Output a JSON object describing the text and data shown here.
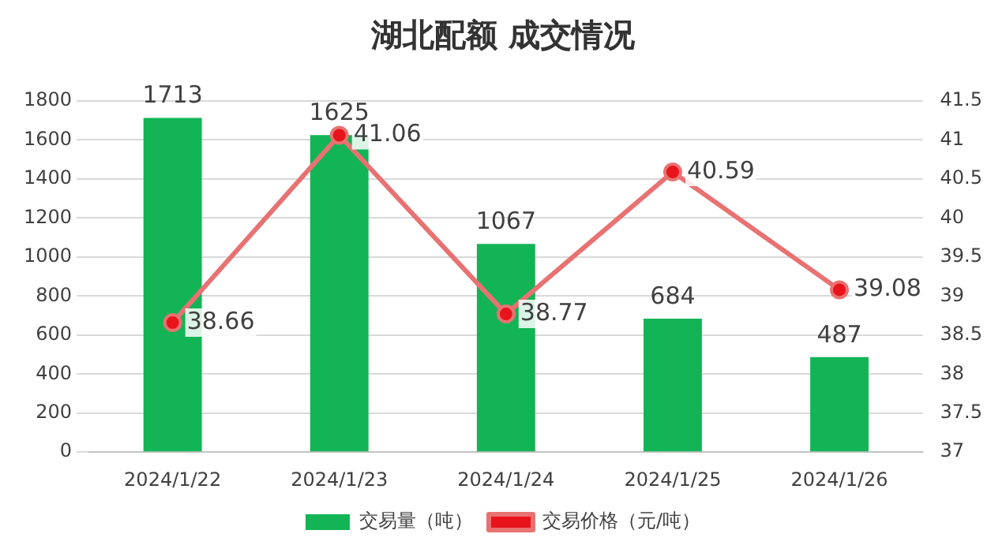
{
  "chart_data": {
    "type": "bar",
    "title": "湖北配额 成交情况",
    "categories": [
      "2024/1/22",
      "2024/1/23",
      "2024/1/24",
      "2024/1/25",
      "2024/1/26"
    ],
    "series": [
      {
        "name": "交易量（吨）",
        "color": "#13b455",
        "values": [
          1713,
          1625,
          1067,
          684,
          487
        ]
      },
      {
        "name": "交易价格（元/吨）",
        "type": "line",
        "axis": "y2",
        "color": "#e87272",
        "marker": "circle",
        "values": [
          38.66,
          41.06,
          38.77,
          40.59,
          39.08
        ]
      }
    ],
    "ylim": [
      0,
      1800
    ],
    "yticks": [
      0,
      200,
      400,
      600,
      800,
      1000,
      1200,
      1400,
      1600,
      1800
    ],
    "y2lim": [
      37,
      41.5
    ],
    "y2ticks": [
      37,
      37.5,
      38,
      38.5,
      39,
      39.5,
      40,
      40.5,
      41,
      41.5
    ],
    "grid": "y",
    "legend": "bottom",
    "data_labels": true
  }
}
